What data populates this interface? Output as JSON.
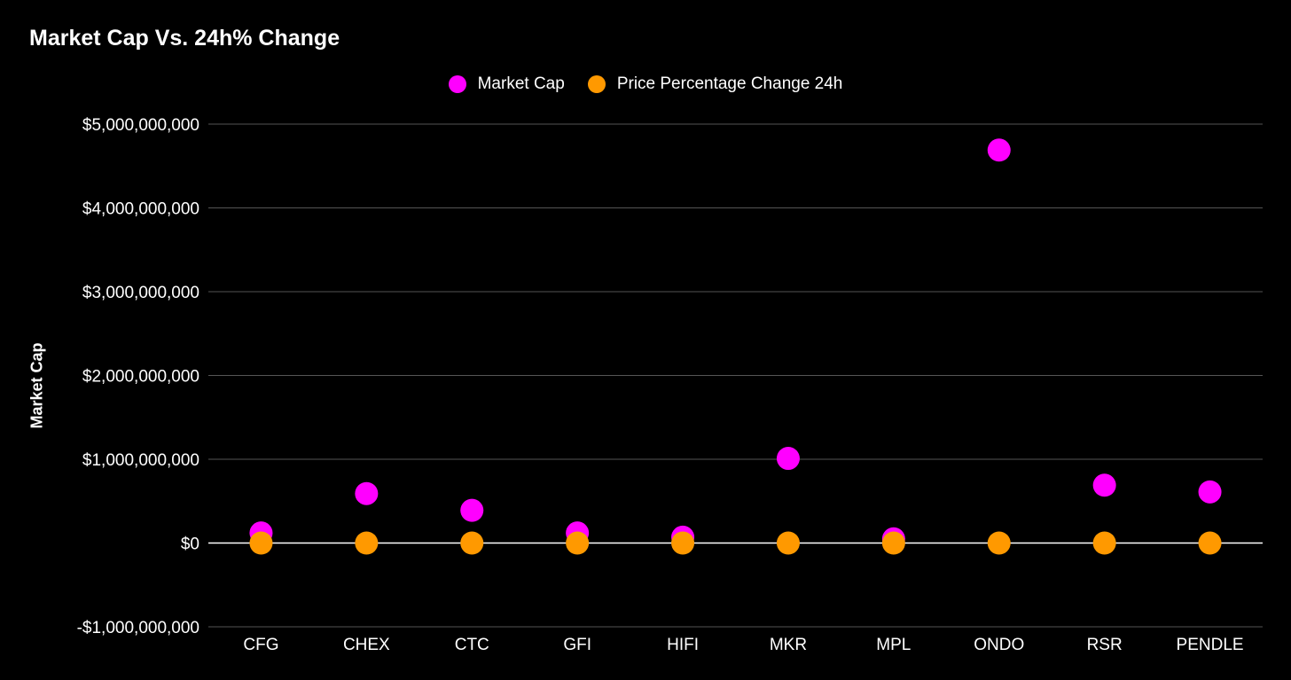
{
  "chart_data": {
    "type": "scatter",
    "title": "Market Cap Vs. 24h% Change",
    "ylabel": "Market Cap",
    "xlabel": "",
    "categories": [
      "CFG",
      "CHEX",
      "CTC",
      "GFI",
      "HIFI",
      "MKR",
      "MPL",
      "ONDO",
      "RSR",
      "PENDLE"
    ],
    "series": [
      {
        "name": "Market Cap",
        "color": "#ff00ff",
        "values": [
          120000000,
          590000000,
          390000000,
          120000000,
          70000000,
          1010000000,
          50000000,
          4690000000,
          690000000,
          610000000
        ]
      },
      {
        "name": "Price Percentage Change 24h",
        "color": "#ff9900",
        "values": [
          0,
          0,
          0,
          0,
          0,
          0,
          0,
          0,
          0,
          0
        ]
      }
    ],
    "ylim": [
      -1000000000,
      5000000000
    ],
    "yticks": [
      {
        "value": 5000000000,
        "label": "$5,000,000,000"
      },
      {
        "value": 4000000000,
        "label": "$4,000,000,000"
      },
      {
        "value": 3000000000,
        "label": "$3,000,000,000"
      },
      {
        "value": 2000000000,
        "label": "$2,000,000,000"
      },
      {
        "value": 1000000000,
        "label": "$1,000,000,000"
      },
      {
        "value": 0,
        "label": "$0"
      },
      {
        "value": -1000000000,
        "label": "-$1,000,000,000"
      }
    ],
    "grid": true,
    "legend_position": "top-center"
  }
}
